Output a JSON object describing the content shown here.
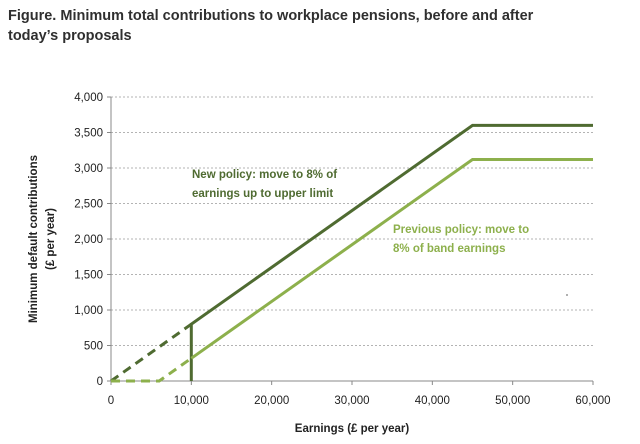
{
  "figure": {
    "title_line1": "Figure. Minimum total contributions to workplace pensions, before and after",
    "title_line2": "today’s proposals"
  },
  "chart_data": {
    "type": "line",
    "xlabel": "Earnings (£ per year)",
    "ylabel_line1": "Minimum default contributions",
    "ylabel_line2": "(£ per year)",
    "xlim": [
      0,
      60000
    ],
    "ylim": [
      0,
      4000
    ],
    "x_ticks": [
      0,
      10000,
      20000,
      30000,
      40000,
      50000,
      60000
    ],
    "x_tick_labels": [
      "0",
      "10,000",
      "20,000",
      "30,000",
      "40,000",
      "50,000",
      "60,000"
    ],
    "y_ticks": [
      0,
      500,
      1000,
      1500,
      2000,
      2500,
      3000,
      3500,
      4000
    ],
    "y_tick_labels": [
      "0",
      "500",
      "1,000",
      "1,500",
      "2,000",
      "2,500",
      "3,000",
      "3,500",
      "4,000"
    ],
    "grid": "horizontal-dashed",
    "series": [
      {
        "name": "New policy",
        "color": "#4f6b31",
        "dashed_segment": [
          [
            0,
            0
          ],
          [
            10000,
            800
          ]
        ],
        "solid_segment": [
          [
            10000,
            0
          ],
          [
            10000,
            800
          ],
          [
            45000,
            3600
          ],
          [
            60000,
            3600
          ]
        ]
      },
      {
        "name": "Previous policy",
        "color": "#8db04c",
        "dashed_segment": [
          [
            0,
            0
          ],
          [
            6000,
            0
          ],
          [
            10000,
            320
          ]
        ],
        "solid_segment": [
          [
            10000,
            320
          ],
          [
            45000,
            3120
          ],
          [
            60000,
            3120
          ]
        ]
      }
    ],
    "annotations": [
      {
        "series": 0,
        "lines": [
          "New policy: move to 8% of",
          "earnings up to upper limit"
        ]
      },
      {
        "series": 1,
        "lines": [
          "Previous policy: move to",
          "8% of band earnings"
        ]
      }
    ]
  }
}
